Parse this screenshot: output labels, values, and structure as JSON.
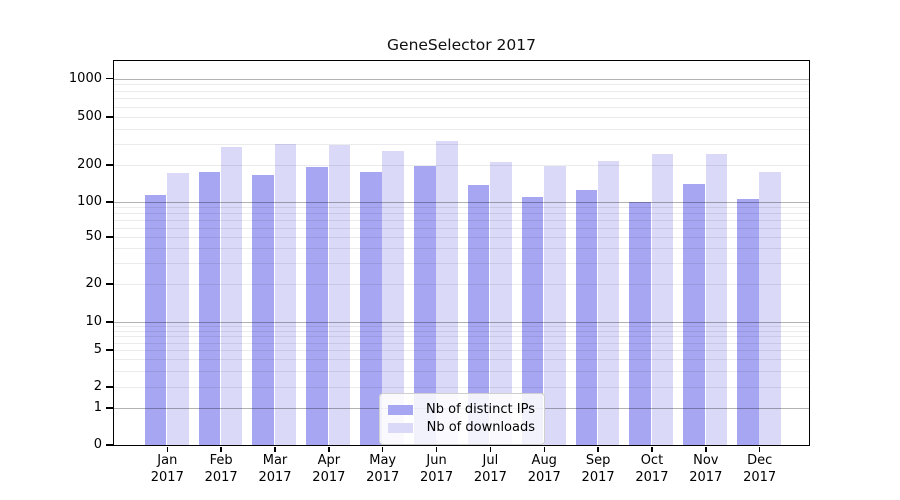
{
  "title": "GeneSelector 2017",
  "chart_data": {
    "type": "bar",
    "title": "GeneSelector 2017",
    "categories": [
      "Jan",
      "Feb",
      "Mar",
      "Apr",
      "May",
      "Jun",
      "Jul",
      "Aug",
      "Sep",
      "Oct",
      "Nov",
      "Dec"
    ],
    "x_sublabel": "2017",
    "series": [
      {
        "name": "Nb of distinct IPs",
        "color": "#a6a6f2",
        "values": [
          113,
          176,
          167,
          193,
          175,
          197,
          137,
          109,
          126,
          100,
          139,
          106
        ]
      },
      {
        "name": "Nb of downloads",
        "color": "#dadaf8",
        "values": [
          173,
          284,
          297,
          293,
          262,
          319,
          212,
          196,
          215,
          248,
          245,
          176
        ]
      }
    ],
    "y_ticks": [
      0,
      1,
      2,
      5,
      10,
      20,
      50,
      100,
      200,
      500,
      1000
    ],
    "y_scale": "symlog",
    "ylim": [
      0,
      1390
    ],
    "grid": "horizontal log minor+major",
    "legend_position": "bottom-center",
    "colors": {
      "background": "#ffffff",
      "frame": "#000000",
      "gridline_major": "#b3b3b3",
      "gridline_minor": "#ececec",
      "text": "#000000",
      "legend_border": "#cfcfcf",
      "legend_bg": "#ffffff"
    }
  }
}
